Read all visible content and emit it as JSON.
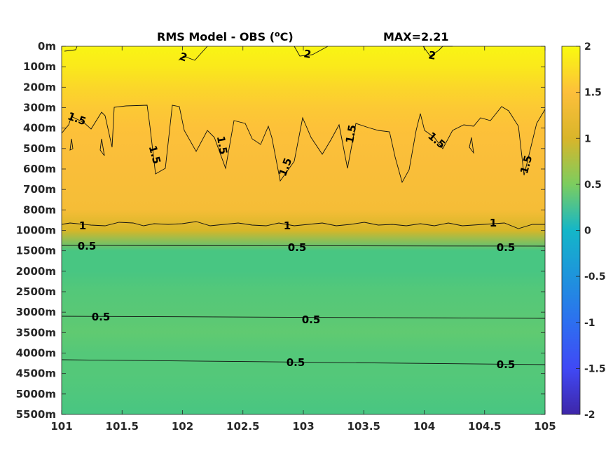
{
  "chart_data": {
    "type": "heatmap",
    "title": "RMS Model - OBS (°C)",
    "title_parts": {
      "main": "RMS Model - OBS (",
      "sup": "o",
      "unit": "C)"
    },
    "max_label": "MAX=2.21",
    "x_ticks": [
      "101",
      "101.5",
      "102",
      "102.5",
      "103",
      "103.5",
      "104",
      "104.5",
      "105"
    ],
    "xlim": [
      101,
      105
    ],
    "y_ticks": [
      "0m",
      "100m",
      "200m",
      "300m",
      "400m",
      "500m",
      "600m",
      "700m",
      "800m",
      "1000m",
      "1500m",
      "2000m",
      "2500m",
      "3000m",
      "3500m",
      "4000m",
      "4500m",
      "5000m",
      "5500m"
    ],
    "y_axis_reversed": true,
    "colorbar": {
      "ticks": [
        "2",
        "1.5",
        "1",
        "0.5",
        "0",
        "-0.5",
        "-1",
        "-1.5",
        "-2"
      ],
      "range": [
        -2,
        2
      ],
      "colormap": "parula"
    },
    "depth_profile": [
      {
        "depth": "0m",
        "value": 1.95
      },
      {
        "depth": "100m",
        "value": 1.85
      },
      {
        "depth": "200m",
        "value": 1.7
      },
      {
        "depth": "300m",
        "value": 1.58
      },
      {
        "depth": "400m",
        "value": 1.52
      },
      {
        "depth": "500m",
        "value": 1.48
      },
      {
        "depth": "600m",
        "value": 1.45
      },
      {
        "depth": "700m",
        "value": 1.42
      },
      {
        "depth": "800m",
        "value": 1.4
      },
      {
        "depth": "1000m",
        "value": 1.0
      },
      {
        "depth": "1500m",
        "value": 0.55
      },
      {
        "depth": "2000m",
        "value": 0.55
      },
      {
        "depth": "2500m",
        "value": 0.6
      },
      {
        "depth": "3000m",
        "value": 0.62
      },
      {
        "depth": "3500m",
        "value": 0.65
      },
      {
        "depth": "4000m",
        "value": 0.6
      },
      {
        "depth": "4500m",
        "value": 0.6
      },
      {
        "depth": "5000m",
        "value": 0.58
      },
      {
        "depth": "5500m",
        "value": 0.55
      }
    ],
    "contour_labels": [
      "2",
      "2",
      "2",
      "1.5",
      "1.5",
      "1.5",
      "1.5",
      "1.5",
      "1.5",
      "1.5",
      "1",
      "1",
      "1",
      "0.5",
      "0.5",
      "0.5",
      "0.5",
      "0.5",
      "0.5",
      "0.5"
    ],
    "grid": false
  }
}
